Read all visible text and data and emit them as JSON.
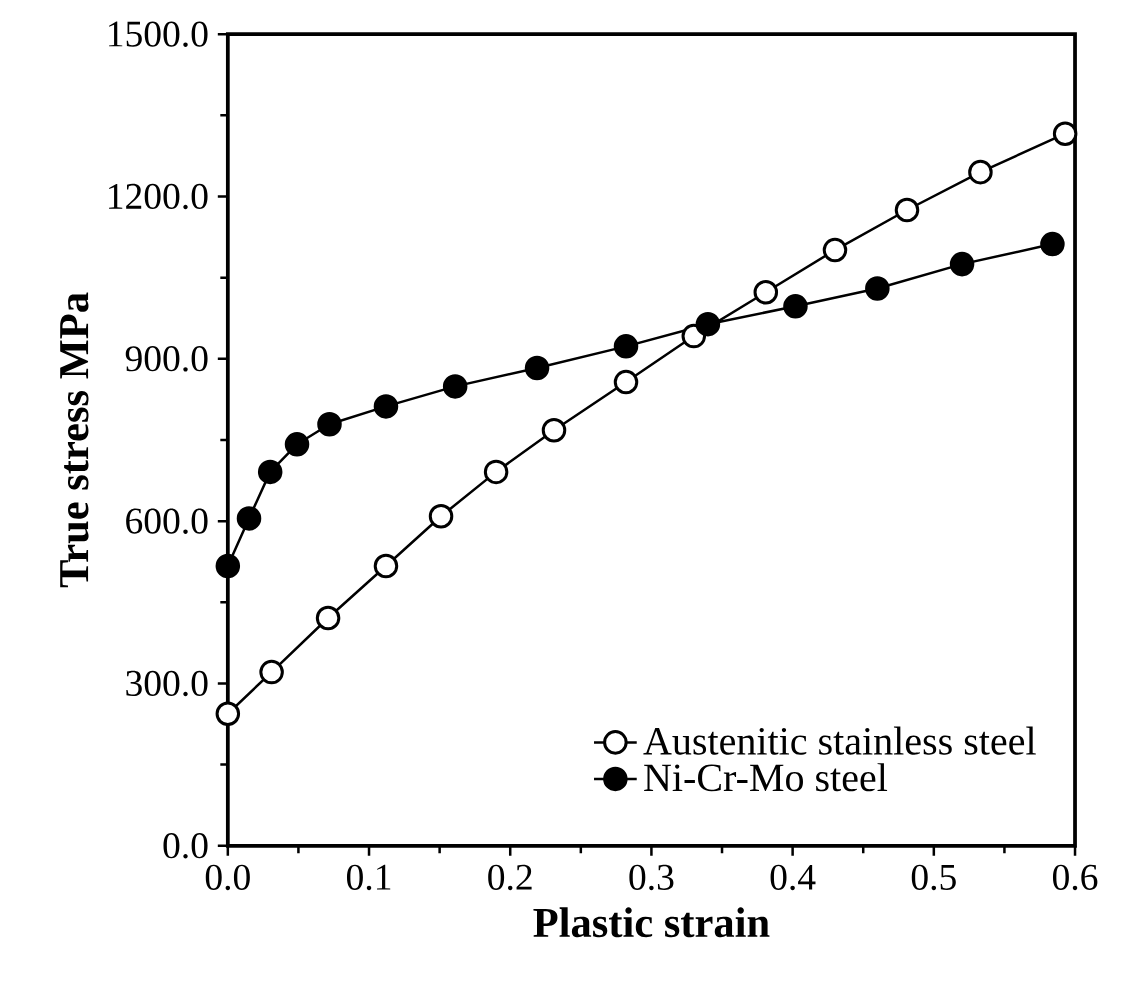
{
  "chart_data": {
    "type": "line",
    "xlabel": "Plastic strain",
    "ylabel": "True stress MPa",
    "xlim": [
      0,
      0.6
    ],
    "ylim": [
      0,
      1500
    ],
    "xticks": [
      {
        "value": 0,
        "label": "0.0"
      },
      0.1,
      0.2,
      0.3,
      0.4,
      0.5,
      0.6
    ],
    "yticks": [
      {
        "value": 0,
        "label": "0.0"
      },
      {
        "value": 300,
        "label": "300.0"
      },
      {
        "value": 600,
        "label": "600.0"
      },
      {
        "value": 900,
        "label": "900.0"
      },
      {
        "value": 1200,
        "label": "1200.0"
      },
      {
        "value": 1500,
        "label": "1500.0"
      }
    ],
    "legend": "bottom right",
    "grid": false,
    "marker": "circle",
    "line_style": "solid",
    "series": [
      {
        "name": "Austenitic stainless steel",
        "color": "#ffffff",
        "x": [
          0,
          0.031,
          0.071,
          0.112,
          0.151,
          0.19,
          0.231,
          0.282,
          0.33,
          0.381,
          0.43,
          0.481,
          0.533,
          0.593
        ],
        "values": [
          244,
          321,
          421,
          517,
          609,
          691,
          768,
          857,
          942,
          1023,
          1101,
          1175,
          1245,
          1316
        ]
      },
      {
        "name": "Ni-Cr-Mo steel",
        "color": "#000000",
        "x": [
          0,
          0.015,
          0.03,
          0.049,
          0.072,
          0.112,
          0.161,
          0.219,
          0.282,
          0.34,
          0.402,
          0.46,
          0.52,
          0.584
        ],
        "values": [
          517,
          605,
          691,
          742,
          779,
          812,
          849,
          883,
          923,
          964,
          997,
          1030,
          1075,
          1112
        ]
      }
    ]
  }
}
